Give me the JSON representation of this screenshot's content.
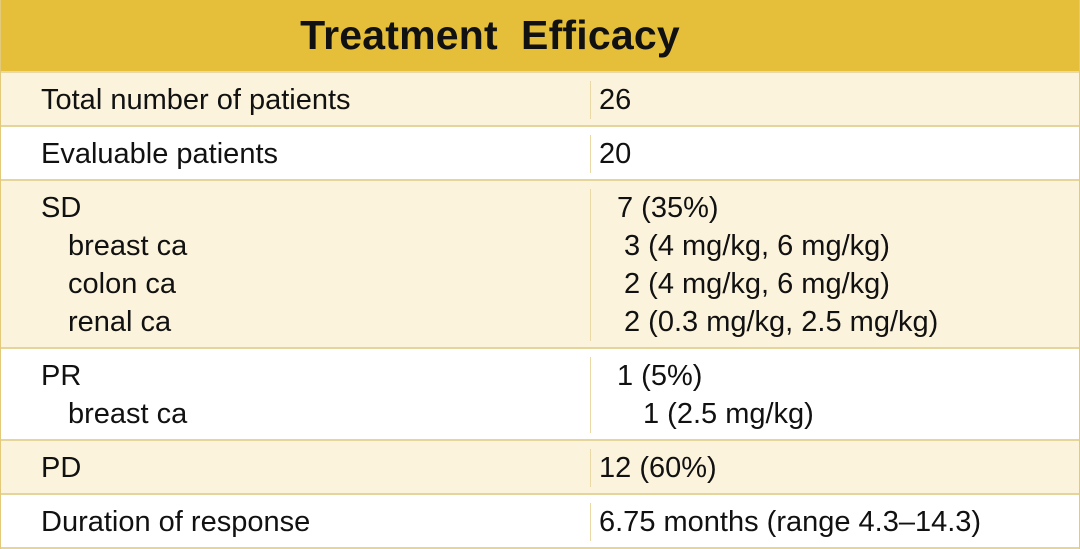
{
  "title": "Treatment  Efficacy",
  "rows": [
    {
      "label": "Total number of patients",
      "value": "26"
    },
    {
      "label": "Evaluable patients",
      "value": "20"
    },
    {
      "label": "SD",
      "value": "7 (35%)",
      "sub": [
        {
          "label": "breast ca",
          "value": "3 (4 mg/kg, 6 mg/kg)"
        },
        {
          "label": "colon ca",
          "value": "2 (4 mg/kg, 6 mg/kg)"
        },
        {
          "label": "renal ca",
          "value": "2 (0.3 mg/kg, 2.5 mg/kg)"
        }
      ]
    },
    {
      "label": "PR",
      "value": "1 (5%)",
      "sub": [
        {
          "label": "breast ca",
          "value": "1 (2.5 mg/kg)"
        }
      ]
    },
    {
      "label": "PD",
      "value": "12 (60%)"
    },
    {
      "label": "Duration of response",
      "value": "6.75 months (range 4.3–14.3)"
    }
  ],
  "colors": {
    "header_bg": "#e5bf3a",
    "row_tan": "#fbf3dc",
    "row_white": "#ffffff",
    "border": "#e6d59a"
  }
}
